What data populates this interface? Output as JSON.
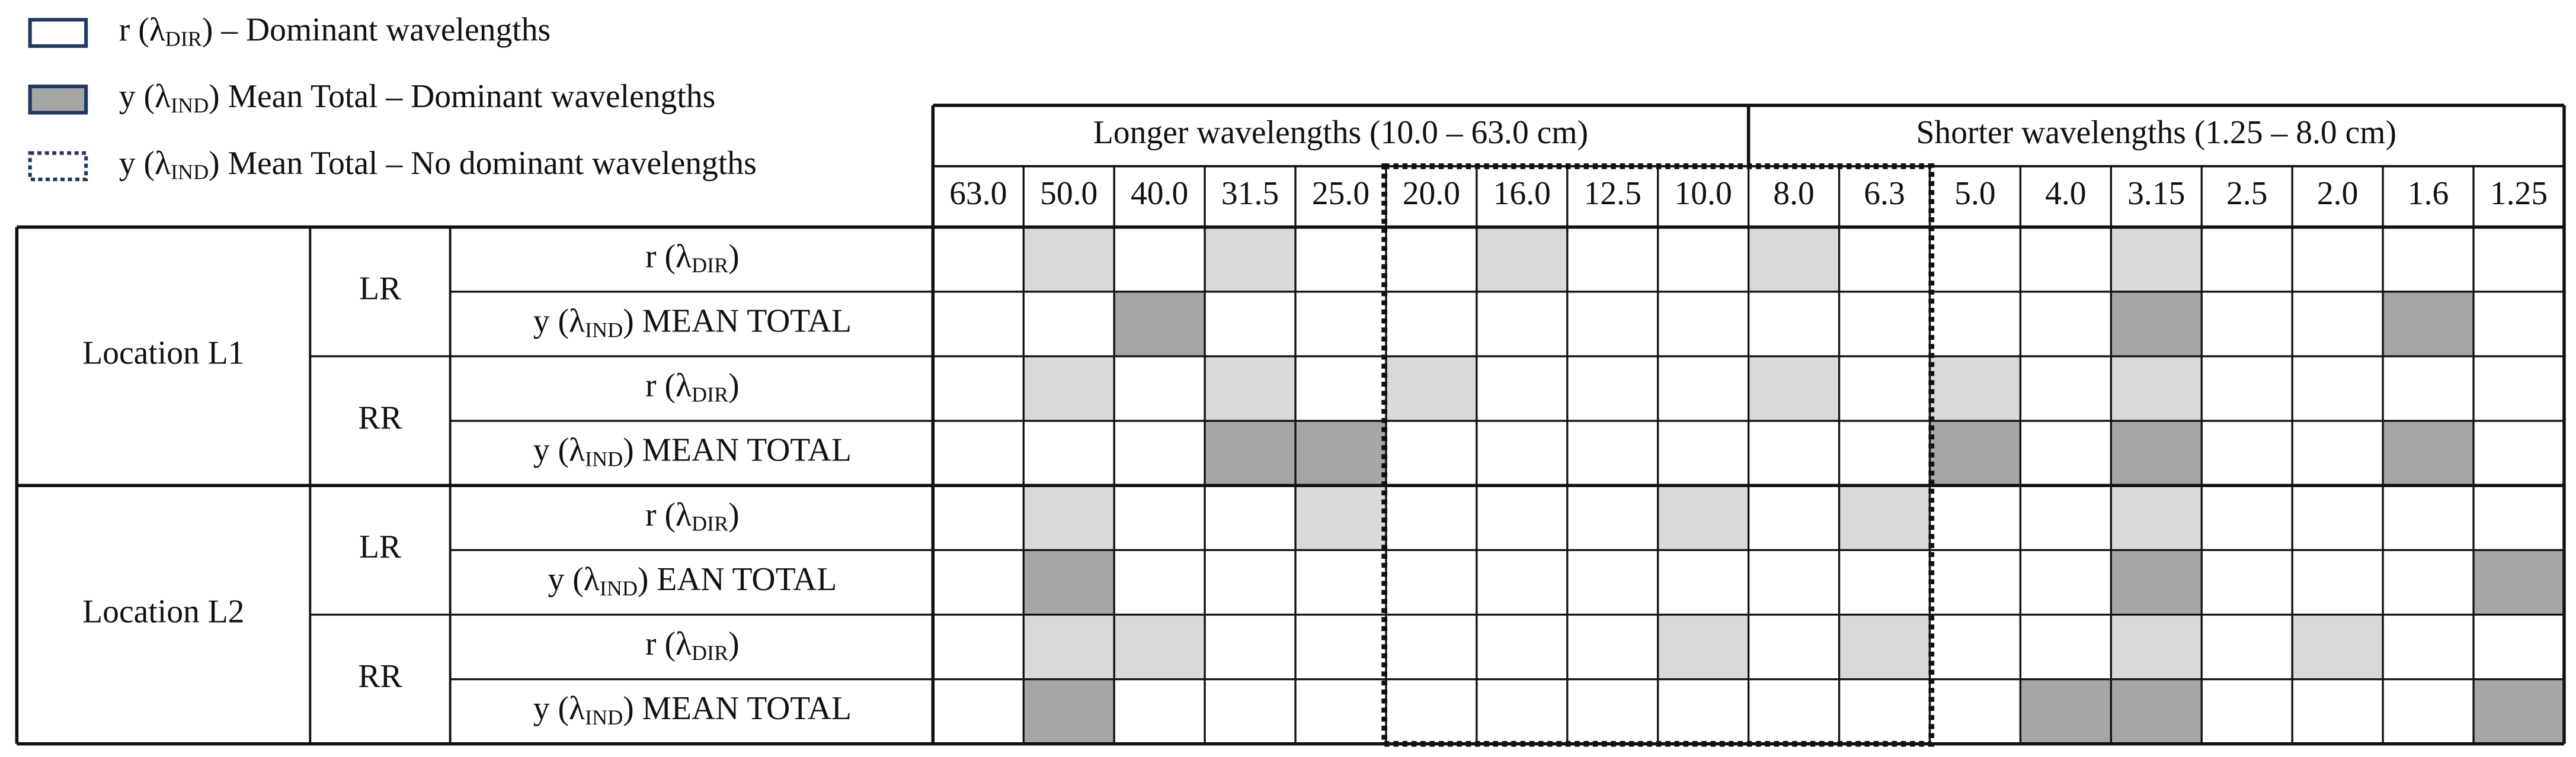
{
  "legend": [
    {
      "label": {
        "pre": "r (λ",
        "sub": "DIR",
        "post": ") – Dominant wavelengths"
      },
      "fill": "#ffffff",
      "style": "solid"
    },
    {
      "label": {
        "pre": "y (λ",
        "sub": "IND",
        "post": ") Mean Total – Dominant wavelengths"
      },
      "fill": "#a6a6a6",
      "style": "solid"
    },
    {
      "label": {
        "pre": "y (λ",
        "sub": "IND",
        "post": ") Mean Total – No dominant wavelengths"
      },
      "fill": "#ffffff",
      "style": "dotted"
    }
  ],
  "header": {
    "groups": [
      {
        "label": "Longer wavelengths (10.0 – 63.0 cm)",
        "columns": [
          "63.0",
          "50.0",
          "40.0",
          "31.5",
          "25.0",
          "20.0",
          "16.0",
          "12.5",
          "10.0"
        ]
      },
      {
        "label": "Shorter wavelengths (1.25 – 8.0 cm)",
        "columns": [
          "8.0",
          "6.3",
          "5.0",
          "4.0",
          "3.15",
          "2.5",
          "2.0",
          "1.6",
          "1.25"
        ]
      }
    ]
  },
  "locations": [
    {
      "label": "Location L1",
      "sides": [
        {
          "label": "LR",
          "rows": [
            {
              "label": {
                "pre": "r (λ",
                "sub": "DIR",
                "post": ")"
              },
              "cells": [
                null,
                "#d9d9d9",
                null,
                "#d9d9d9",
                null,
                null,
                "#d9d9d9",
                null,
                null,
                "#d9d9d9",
                null,
                null,
                null,
                "#d9d9d9",
                null,
                null,
                null,
                null
              ]
            },
            {
              "label": {
                "pre": "y  (λ",
                "sub": "IND",
                "post": ") MEAN TOTAL"
              },
              "cells": [
                null,
                null,
                "#a6a6a6",
                null,
                null,
                null,
                null,
                null,
                null,
                null,
                null,
                null,
                null,
                "#a6a6a6",
                null,
                null,
                "#a6a6a6",
                null
              ]
            }
          ]
        },
        {
          "label": "RR",
          "rows": [
            {
              "label": {
                "pre": "r (λ",
                "sub": "DIR",
                "post": ")"
              },
              "cells": [
                null,
                "#d9d9d9",
                null,
                "#d9d9d9",
                null,
                "#d9d9d9",
                null,
                null,
                null,
                "#d9d9d9",
                null,
                "#d9d9d9",
                null,
                "#d9d9d9",
                null,
                null,
                null,
                null
              ]
            },
            {
              "label": {
                "pre": "y  (λ",
                "sub": "IND",
                "post": ") MEAN TOTAL"
              },
              "cells": [
                null,
                null,
                null,
                "#a6a6a6",
                "#a6a6a6",
                null,
                null,
                null,
                null,
                null,
                null,
                "#a6a6a6",
                null,
                "#a6a6a6",
                null,
                null,
                "#a6a6a6",
                null
              ]
            }
          ]
        }
      ]
    },
    {
      "label": "Location L2",
      "sides": [
        {
          "label": "LR",
          "rows": [
            {
              "label": {
                "pre": "r (λ",
                "sub": "DIR",
                "post": ")"
              },
              "cells": [
                null,
                "#d9d9d9",
                null,
                null,
                "#d9d9d9",
                null,
                null,
                null,
                "#d9d9d9",
                null,
                "#d9d9d9",
                null,
                null,
                "#d9d9d9",
                null,
                null,
                null,
                null
              ]
            },
            {
              "label": {
                "pre": "y  (λ",
                "sub": "IND",
                "post": ") EAN TOTAL"
              },
              "cells": [
                null,
                "#a6a6a6",
                null,
                null,
                null,
                null,
                null,
                null,
                null,
                null,
                null,
                null,
                null,
                "#a6a6a6",
                null,
                null,
                null,
                "#a6a6a6"
              ]
            }
          ]
        },
        {
          "label": "RR",
          "rows": [
            {
              "label": {
                "pre": "r (λ",
                "sub": "DIR",
                "post": ")"
              },
              "cells": [
                null,
                "#d9d9d9",
                "#d9d9d9",
                null,
                null,
                null,
                null,
                null,
                "#d9d9d9",
                null,
                "#d9d9d9",
                null,
                null,
                "#d9d9d9",
                null,
                "#d9d9d9",
                null,
                null
              ]
            },
            {
              "label": {
                "pre": "y  (λ",
                "sub": "IND",
                "post": ") MEAN TOTAL"
              },
              "cells": [
                null,
                "#a6a6a6",
                null,
                null,
                null,
                null,
                null,
                null,
                null,
                null,
                null,
                null,
                "#a6a6a6",
                "#a6a6a6",
                null,
                null,
                null,
                "#a6a6a6"
              ]
            }
          ]
        }
      ]
    }
  ]
}
